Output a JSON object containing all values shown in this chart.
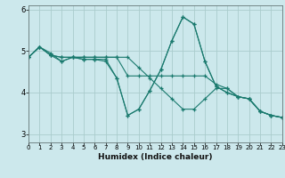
{
  "xlabel": "Humidex (Indice chaleur)",
  "background_color": "#cce8ec",
  "grid_color": "#aacccc",
  "line_color": "#1a7a6e",
  "xlim": [
    0,
    23
  ],
  "ylim": [
    2.8,
    6.1
  ],
  "yticks": [
    3,
    4,
    5,
    6
  ],
  "xtick_labels": [
    "0",
    "1",
    "2",
    "3",
    "4",
    "5",
    "6",
    "7",
    "8",
    "9",
    "10",
    "11",
    "12",
    "13",
    "14",
    "15",
    "16",
    "17",
    "18",
    "19",
    "20",
    "21",
    "22",
    "23"
  ],
  "series1_x": [
    0,
    1,
    2,
    3,
    4,
    5,
    6,
    7,
    8,
    9,
    10,
    11,
    12,
    13,
    14,
    15,
    16,
    17,
    18,
    19,
    20,
    21,
    22,
    23
  ],
  "series1_y": [
    4.85,
    5.1,
    4.95,
    4.75,
    4.85,
    4.8,
    4.8,
    4.8,
    4.35,
    3.45,
    3.6,
    4.05,
    4.55,
    5.25,
    5.82,
    5.65,
    4.75,
    4.15,
    4.0,
    3.9,
    3.85,
    3.55,
    3.45,
    3.4
  ],
  "series2_x": [
    0,
    1,
    2,
    3,
    4,
    5,
    6,
    7,
    8,
    9,
    10,
    11,
    12,
    13,
    14,
    15,
    16,
    17,
    18,
    19,
    20,
    21,
    22,
    23
  ],
  "series2_y": [
    4.85,
    5.1,
    4.9,
    4.85,
    4.85,
    4.85,
    4.85,
    4.85,
    4.85,
    4.85,
    4.6,
    4.35,
    4.1,
    3.85,
    3.6,
    3.6,
    3.85,
    4.1,
    4.1,
    3.9,
    3.85,
    3.55,
    3.45,
    3.4
  ],
  "series3_x": [
    0,
    1,
    2,
    3,
    4,
    5,
    6,
    7,
    8,
    9,
    10,
    11,
    12,
    13,
    14,
    15,
    16,
    17,
    18,
    19,
    20,
    21,
    22,
    23
  ],
  "series3_y": [
    4.85,
    5.1,
    4.9,
    4.85,
    4.85,
    4.85,
    4.85,
    4.85,
    4.85,
    4.4,
    4.4,
    4.4,
    4.4,
    4.4,
    4.4,
    4.4,
    4.4,
    4.2,
    4.1,
    3.9,
    3.85,
    3.55,
    3.45,
    3.4
  ],
  "series4_x": [
    0,
    1,
    2,
    3,
    4,
    5,
    6,
    7,
    8,
    9,
    10,
    11,
    12,
    13,
    14,
    15,
    16,
    17,
    18,
    19,
    20,
    21,
    22,
    23
  ],
  "series4_y": [
    4.85,
    5.1,
    4.9,
    4.75,
    4.85,
    4.8,
    4.8,
    4.75,
    4.35,
    3.45,
    3.6,
    4.05,
    4.55,
    5.25,
    5.82,
    5.65,
    4.75,
    4.15,
    4.0,
    3.9,
    3.85,
    3.55,
    3.45,
    3.4
  ]
}
